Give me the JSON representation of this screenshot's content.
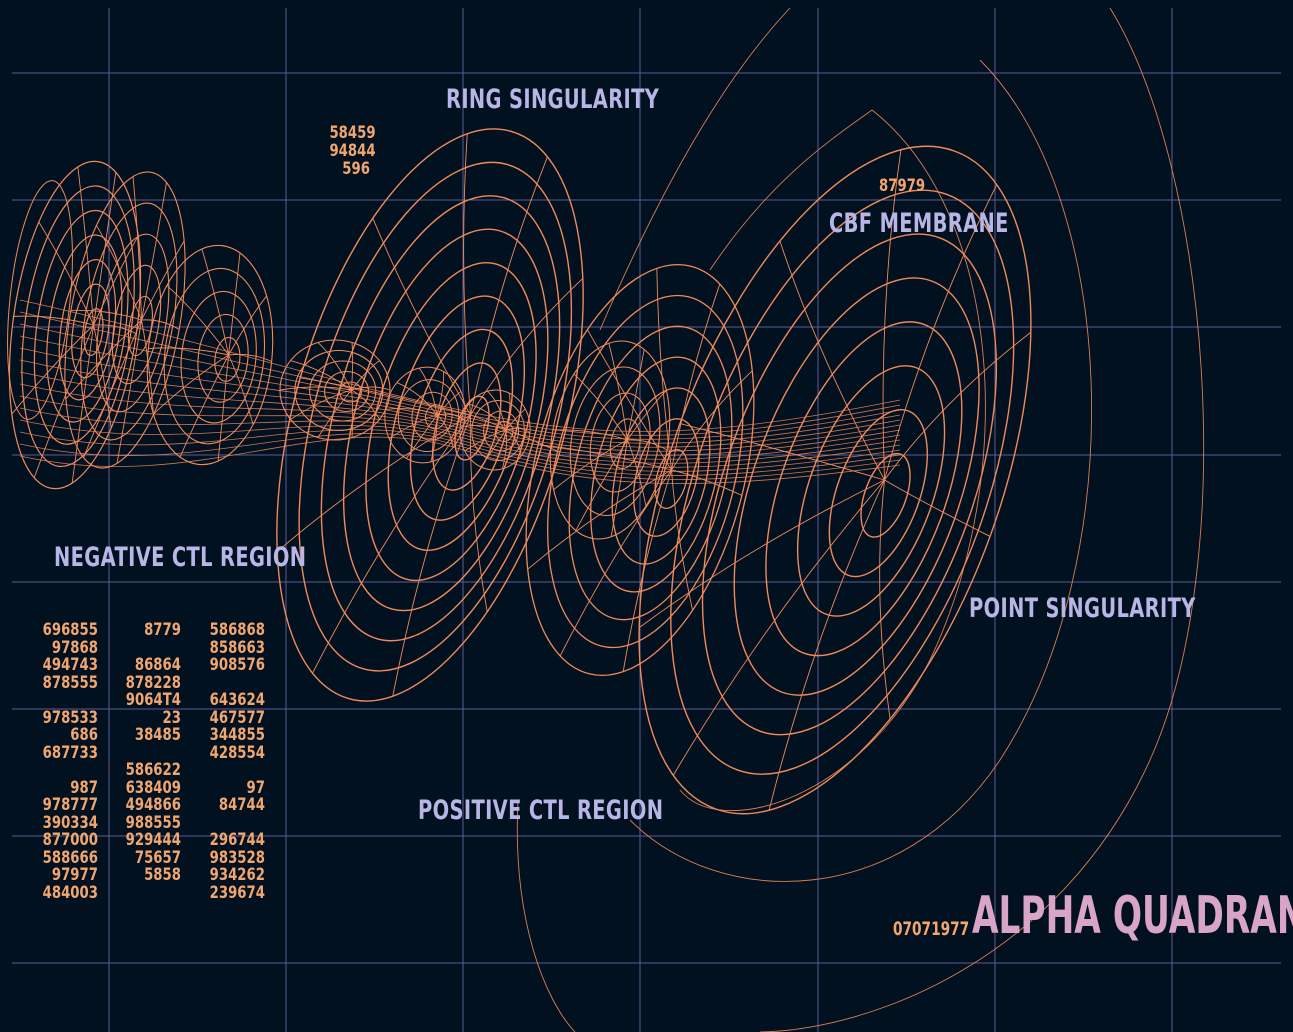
{
  "colors": {
    "background": "#02111f",
    "grid": "#5a5a93",
    "wireframe": "#f08a5d",
    "label": "#b7b6e6",
    "numbers": "#f2a66f",
    "title": "#d9a5c6"
  },
  "labels": {
    "ring_singularity": "RING SINGULARITY",
    "cbf_membrane": "CBF MEMBRANE",
    "negative_region": "NEGATIVE CTL REGION",
    "point_singularity": "POINT SINGULARITY",
    "positive_region": "POSITIVE CTL REGION",
    "quadrant": "ALPHA QUADRANT"
  },
  "numbers": {
    "ring_values": [
      "58459",
      "94844",
      "596"
    ],
    "membrane_value": "87979",
    "stamp": "07071977",
    "table_col1": [
      "696855",
      "97868",
      "494743",
      "878555",
      "",
      "978533",
      "686",
      "687733",
      "",
      "987",
      "978777",
      "390334",
      "877000",
      "588666",
      "97977",
      "484003"
    ],
    "table_col2": [
      "8779",
      "",
      "86864",
      "878228",
      "9064T4",
      "23",
      "38485",
      "",
      "586622",
      "638409",
      "494866",
      "988555",
      "929444",
      "75657",
      "5858",
      ""
    ],
    "table_col3": [
      "586868",
      "858663",
      "908576",
      "",
      "643624",
      "467577",
      "344855",
      "428554",
      "",
      "97",
      "84744",
      "",
      "296744",
      "983528",
      "934262",
      "239674"
    ]
  }
}
